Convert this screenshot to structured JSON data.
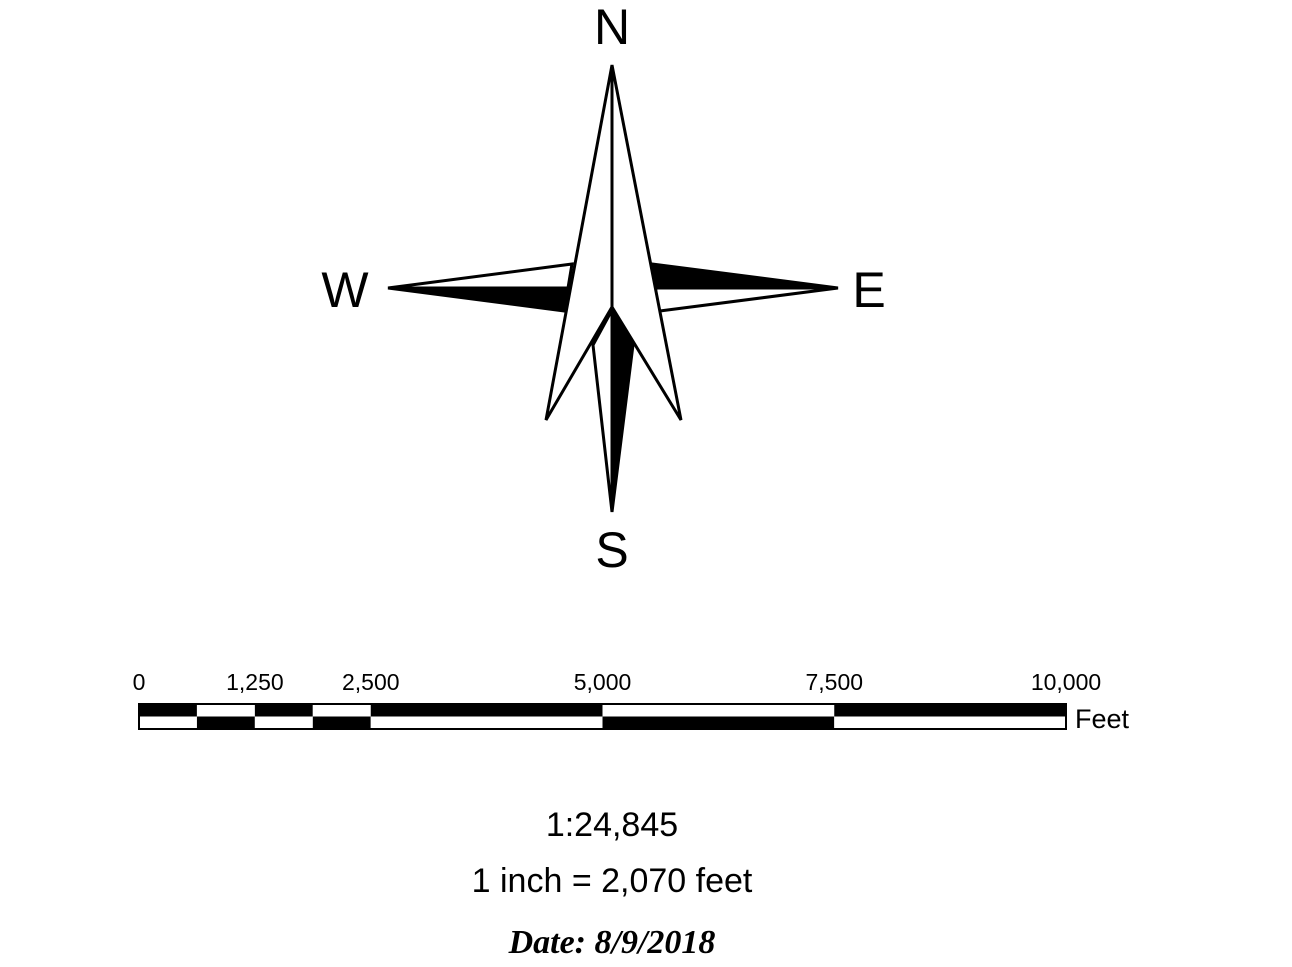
{
  "north_arrow": {
    "labels": {
      "north": "N",
      "south": "S",
      "west": "W",
      "east": "E"
    }
  },
  "scale_bar": {
    "tick_labels": [
      "0",
      "1,250",
      "2,500",
      "5,000",
      "7,500",
      "10,000"
    ],
    "tick_values": [
      0,
      1250,
      2500,
      5000,
      7500,
      10000
    ],
    "major_divisions": [
      0,
      2500,
      5000,
      7500,
      10000
    ],
    "minor_divisions": [
      0,
      625,
      1250,
      1875,
      2500
    ],
    "max_value": 10000,
    "unit": "Feet"
  },
  "scale_text": {
    "ratio": "1:24,845",
    "equivalence": "1 inch = 2,070 feet"
  },
  "date_text": "Date: 8/9/2018",
  "colors": {
    "fill_dark": "#000000",
    "fill_light": "#ffffff"
  }
}
